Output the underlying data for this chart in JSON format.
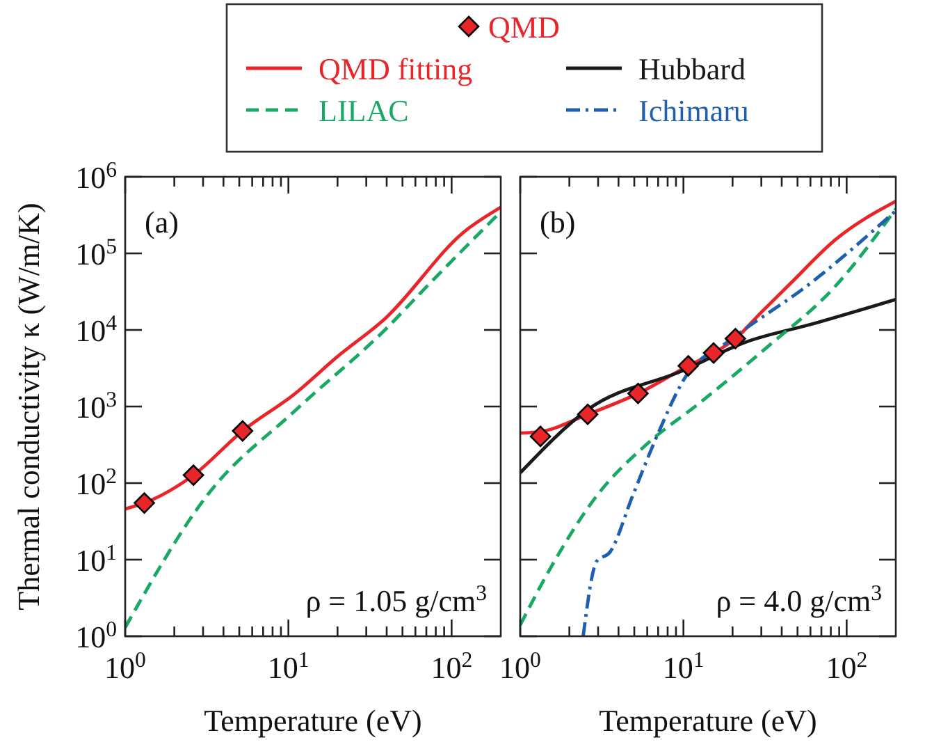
{
  "chart_data": [
    {
      "type": "line",
      "xlabel": "Temperature (eV)",
      "ylabel": "Thermal conductivity κ (W/m/K)",
      "log": "xy",
      "legend": "top",
      "tick_labels": "xy",
      "xlim": [
        1,
        200
      ],
      "ylim": [
        1,
        1000000
      ],
      "xticks": [
        {
          "value": 1,
          "label": "10$^{0}$"
        },
        {
          "value": 2,
          "label": null
        },
        {
          "value": 3,
          "label": null
        },
        {
          "value": 4,
          "label": null
        },
        {
          "value": 5,
          "label": null
        },
        {
          "value": 6,
          "label": null
        },
        {
          "value": 7,
          "label": null
        },
        {
          "value": 8,
          "label": null
        },
        {
          "value": 9,
          "label": null
        },
        {
          "value": 10,
          "label": "10$^{1}$"
        },
        {
          "value": 20,
          "label": null
        },
        {
          "value": 30,
          "label": null
        },
        {
          "value": 40,
          "label": null
        },
        {
          "value": 50,
          "label": null
        },
        {
          "value": 60,
          "label": null
        },
        {
          "value": 70,
          "label": null
        },
        {
          "value": 80,
          "label": null
        },
        {
          "value": 90,
          "label": null
        },
        {
          "value": 100,
          "label": "10$^{2}$"
        }
      ],
      "yticks": [
        {
          "value": 1,
          "label": "10$^{0}$"
        },
        {
          "value": 10,
          "label": "10$^{1}$"
        },
        {
          "value": 100,
          "label": "10$^{2}$"
        },
        {
          "value": 1000,
          "label": "10$^{3}$"
        },
        {
          "value": 10000,
          "label": "10$^{4}$"
        },
        {
          "value": 100000,
          "label": "10$^{5}$"
        },
        {
          "value": 1000000,
          "label": "10$^{6}$"
        }
      ],
      "annotations": [
        "(a)",
        "ρ = 1.05 g/cm$^{3}$"
      ],
      "series": [
        {
          "name": "QMD fitting",
          "color": "#e8262a",
          "line_style": "solid",
          "x": [
            1,
            1.31,
            2.62,
            5.24,
            11,
            20,
            39,
            121,
            200
          ],
          "values": [
            46,
            55,
            127,
            480,
            1480,
            4500,
            14000,
            196000,
            400000
          ]
        },
        {
          "name": "LILAC",
          "color": "#1aa865",
          "line_style": "dashed",
          "x": [
            1,
            3.16,
            11.1,
            39,
            73,
            200
          ],
          "values": [
            1.3,
            68,
            900,
            10000,
            40000,
            350000
          ]
        },
        {
          "name": "QMD",
          "type": "scatter",
          "marker": "diamond",
          "color": "#e8262a",
          "x": [
            1.31,
            2.62,
            5.24
          ],
          "values": [
            55,
            127,
            480
          ]
        }
      ]
    },
    {
      "type": "line",
      "xlabel": "Temperature (eV)",
      "log": "xy",
      "legend": "top",
      "tick_labels": "x",
      "xlim": [
        1,
        200
      ],
      "ylim": [
        1,
        1000000
      ],
      "xticks": [
        {
          "value": 1,
          "label": "10$^{0}$"
        },
        {
          "value": 2,
          "label": null
        },
        {
          "value": 3,
          "label": null
        },
        {
          "value": 4,
          "label": null
        },
        {
          "value": 5,
          "label": null
        },
        {
          "value": 6,
          "label": null
        },
        {
          "value": 7,
          "label": null
        },
        {
          "value": 8,
          "label": null
        },
        {
          "value": 9,
          "label": null
        },
        {
          "value": 10,
          "label": "10$^{1}$"
        },
        {
          "value": 20,
          "label": null
        },
        {
          "value": 30,
          "label": null
        },
        {
          "value": 40,
          "label": null
        },
        {
          "value": 50,
          "label": null
        },
        {
          "value": 60,
          "label": null
        },
        {
          "value": 70,
          "label": null
        },
        {
          "value": 80,
          "label": null
        },
        {
          "value": 90,
          "label": null
        },
        {
          "value": 100,
          "label": "10$^{2}$"
        }
      ],
      "yticks": [
        {
          "value": 1,
          "label": null
        },
        {
          "value": 10,
          "label": null
        },
        {
          "value": 100,
          "label": null
        },
        {
          "value": 1000,
          "label": null
        },
        {
          "value": 10000,
          "label": null
        },
        {
          "value": 100000,
          "label": null
        },
        {
          "value": 1000000,
          "label": null
        }
      ],
      "annotations": [
        "(b)",
        "ρ = 4.0 g/cm$^{3}$"
      ],
      "series": [
        {
          "name": "QMD fitting",
          "color": "#e8262a",
          "line_style": "solid",
          "x": [
            1,
            1.33,
            2.59,
            5.27,
            10.7,
            15.3,
            20.8,
            30,
            45,
            85,
            200
          ],
          "values": [
            450,
            470,
            790,
            1480,
            3400,
            5000,
            7700,
            17000,
            40000,
            150000,
            480000
          ]
        },
        {
          "name": "Hubbard",
          "color": "#1a1a1a",
          "line_style": "solid",
          "x": [
            1,
            2.59,
            10,
            23.9,
            61.9,
            200
          ],
          "values": [
            136,
            910,
            2960,
            6900,
            12000,
            25000
          ]
        },
        {
          "name": "LILAC",
          "color": "#1aa865",
          "line_style": "dashed",
          "x": [
            1,
            1.56,
            2.94,
            5.9,
            12.6,
            32.7,
            85,
            200
          ],
          "values": [
            1.4,
            8.3,
            68,
            316,
            1120,
            6000,
            37000,
            380000
          ]
        },
        {
          "name": "Ichimaru",
          "color": "#1f5fb0",
          "line_style": "dashdot",
          "x": [
            2.43,
            2.94,
            3.55,
            4.88,
            6.7,
            10.5,
            18.5,
            62,
            200
          ],
          "values": [
            1,
            9.5,
            12.6,
            68,
            360,
            2600,
            6900,
            43000,
            360000
          ]
        },
        {
          "name": "QMD",
          "type": "scatter",
          "marker": "diamond",
          "color": "#e8262a",
          "x": [
            1.33,
            2.59,
            5.27,
            10.7,
            15.3,
            20.8
          ],
          "values": [
            407,
            790,
            1480,
            3400,
            5000,
            7700
          ]
        }
      ]
    }
  ]
}
